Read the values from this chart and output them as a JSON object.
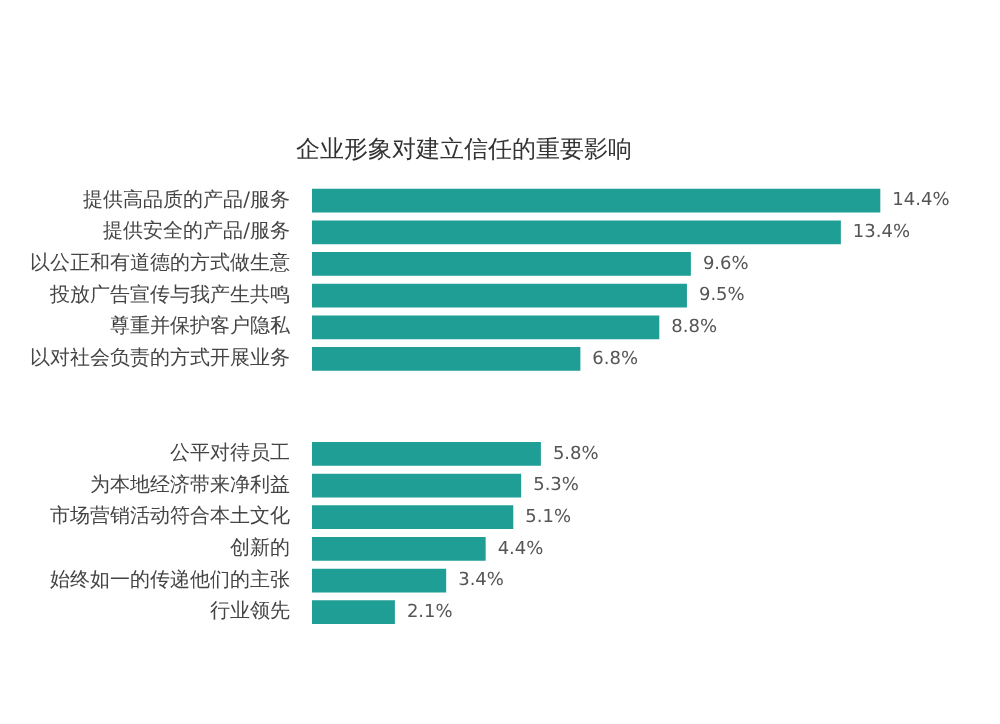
{
  "chart_data": {
    "type": "bar",
    "orientation": "horizontal",
    "title": "企业形象对建立信任的重要影响",
    "categories": [
      "提供高品质的产品/服务",
      "提供安全的产品/服务",
      "以公正和有道德的方式做生意",
      "投放广告宣传与我产生共鸣",
      "尊重并保护客户隐私",
      "以对社会负责的方式开展业务",
      null,
      null,
      "公平对待员工",
      "为本地经济带来净利益",
      "市场营销活动符合本土文化",
      "创新的",
      "始终如一的传递他们的主张",
      "行业领先"
    ],
    "values": [
      14.4,
      13.4,
      9.6,
      9.5,
      8.8,
      6.8,
      null,
      null,
      5.8,
      5.3,
      5.1,
      4.4,
      3.4,
      2.1
    ],
    "value_labels": [
      "14.4%",
      "13.4%",
      "9.6%",
      "9.5%",
      "8.8%",
      "6.8%",
      null,
      null,
      "5.8%",
      "5.3%",
      "5.1%",
      "4.4%",
      "3.4%",
      "2.1%"
    ],
    "color": "#1f9e96",
    "legend": false
  }
}
